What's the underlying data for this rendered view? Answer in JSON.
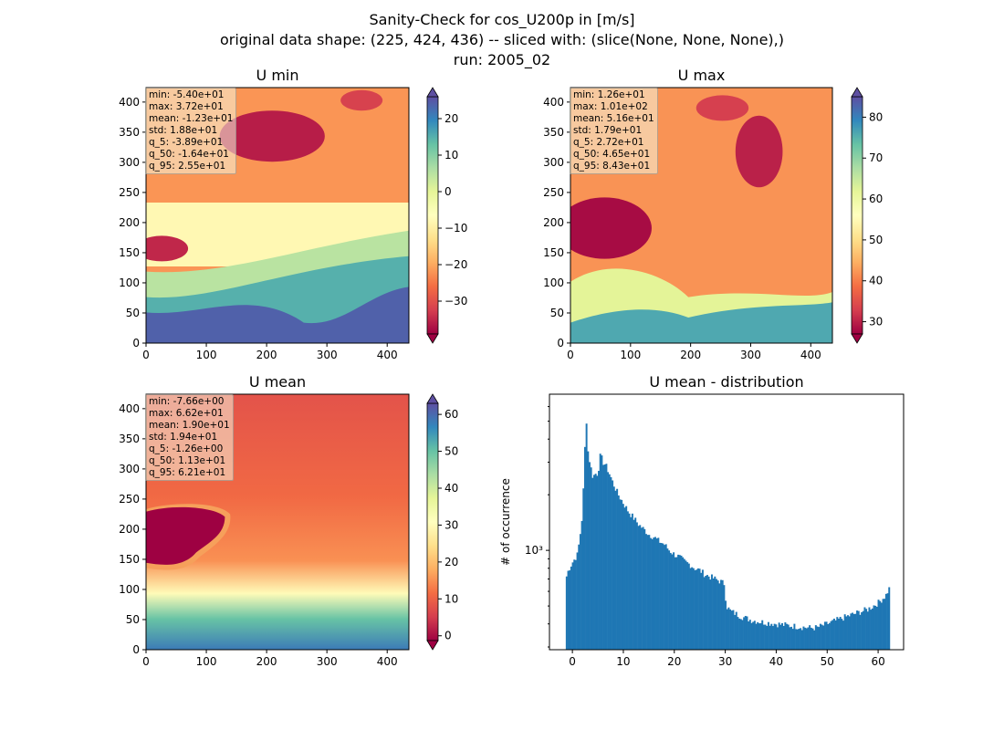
{
  "figure": {
    "title_lines": [
      "Sanity-Check for cos_U200p in [m/s]",
      "original data shape: (225, 424, 436) -- sliced with: (slice(None, None, None),)",
      "run: 2005_02"
    ]
  },
  "colors": {
    "hist_bar": "#1f77b4",
    "colormap": "Spectral"
  },
  "chart_data": [
    {
      "type": "heatmap",
      "title": "U min",
      "xlim": [
        0,
        436
      ],
      "ylim": [
        0,
        424
      ],
      "xticks": [
        0,
        100,
        200,
        300,
        400
      ],
      "yticks": [
        0,
        50,
        100,
        150,
        200,
        250,
        300,
        350,
        400
      ],
      "colorbar": {
        "vmin": -39,
        "vmax": 26,
        "ticks": [
          20,
          10,
          0,
          -10,
          -20,
          -30
        ],
        "tick_labels": [
          "20",
          "10",
          "0",
          "−10",
          "−20",
          "−30"
        ],
        "extend": "both"
      },
      "stats": [
        "min: -5.40e+01",
        "max: 3.72e+01",
        "mean: -1.23e+01",
        "std: 1.88e+01",
        "q_5: -3.89e+01",
        "q_50: -1.64e+01",
        "q_95: 2.55e+01"
      ]
    },
    {
      "type": "heatmap",
      "title": "U max",
      "xlim": [
        0,
        436
      ],
      "ylim": [
        0,
        424
      ],
      "xticks": [
        0,
        100,
        200,
        300,
        400
      ],
      "yticks": [
        0,
        50,
        100,
        150,
        200,
        250,
        300,
        350,
        400
      ],
      "colorbar": {
        "vmin": 27,
        "vmax": 85,
        "ticks": [
          80,
          70,
          60,
          50,
          40,
          30
        ],
        "tick_labels": [
          "80",
          "70",
          "60",
          "50",
          "40",
          "30"
        ],
        "extend": "both"
      },
      "stats": [
        "min: 1.26e+01",
        "max: 1.01e+02",
        "mean: 5.16e+01",
        "std: 1.79e+01",
        "q_5: 2.72e+01",
        "q_50: 4.65e+01",
        "q_95: 8.43e+01"
      ]
    },
    {
      "type": "heatmap",
      "title": "U mean",
      "xlim": [
        0,
        436
      ],
      "ylim": [
        0,
        424
      ],
      "xticks": [
        0,
        100,
        200,
        300,
        400
      ],
      "yticks": [
        0,
        50,
        100,
        150,
        200,
        250,
        300,
        350,
        400
      ],
      "colorbar": {
        "vmin": -1.3,
        "vmax": 63,
        "ticks": [
          60,
          50,
          40,
          30,
          20,
          10,
          0
        ],
        "tick_labels": [
          "60",
          "50",
          "40",
          "30",
          "20",
          "10",
          "0"
        ],
        "extend": "both"
      },
      "stats": [
        "min: -7.66e+00",
        "max: 6.62e+01",
        "mean: 1.90e+01",
        "std: 1.94e+01",
        "q_5: -1.26e+00",
        "q_50: 1.13e+01",
        "q_95: 6.21e+01"
      ]
    },
    {
      "type": "bar",
      "title": "U mean - distribution",
      "ylabel": "# of occurrence",
      "yscale": "log",
      "xlim": [
        -4.5,
        65
      ],
      "ylim": [
        290,
        7000
      ],
      "xticks": [
        0,
        10,
        20,
        30,
        40,
        50,
        60
      ],
      "yticks_major": [
        1000
      ],
      "ytick_labels": [
        "10³"
      ],
      "bin_width": 0.3,
      "x_start": -1.3,
      "x_end": 62.1,
      "profile_x": [
        -1.3,
        -0.8,
        0,
        1,
        1.5,
        2,
        2.3,
        2.7,
        3,
        3.5,
        4,
        4.5,
        5,
        5.5,
        6,
        6.5,
        7,
        7.5,
        8,
        9,
        10,
        11,
        12,
        13,
        14,
        15,
        16,
        17,
        18,
        19,
        20,
        21,
        22,
        23,
        24,
        25,
        26,
        27,
        28,
        29,
        29.8,
        30.2,
        31,
        33,
        35,
        37,
        40,
        43,
        45,
        47,
        48,
        50,
        52,
        54,
        56,
        58,
        60,
        61.5,
        62.1
      ],
      "profile_y": [
        700,
        780,
        860,
        950,
        1200,
        1600,
        2800,
        5400,
        3500,
        2900,
        2500,
        2600,
        2600,
        3300,
        3000,
        2900,
        2700,
        2500,
        2300,
        2000,
        1800,
        1620,
        1500,
        1380,
        1300,
        1220,
        1180,
        1120,
        1080,
        1000,
        950,
        920,
        870,
        840,
        800,
        780,
        740,
        720,
        700,
        680,
        660,
        500,
        470,
        440,
        420,
        410,
        400,
        390,
        385,
        380,
        382,
        400,
        420,
        440,
        460,
        480,
        520,
        570,
        620
      ]
    }
  ]
}
